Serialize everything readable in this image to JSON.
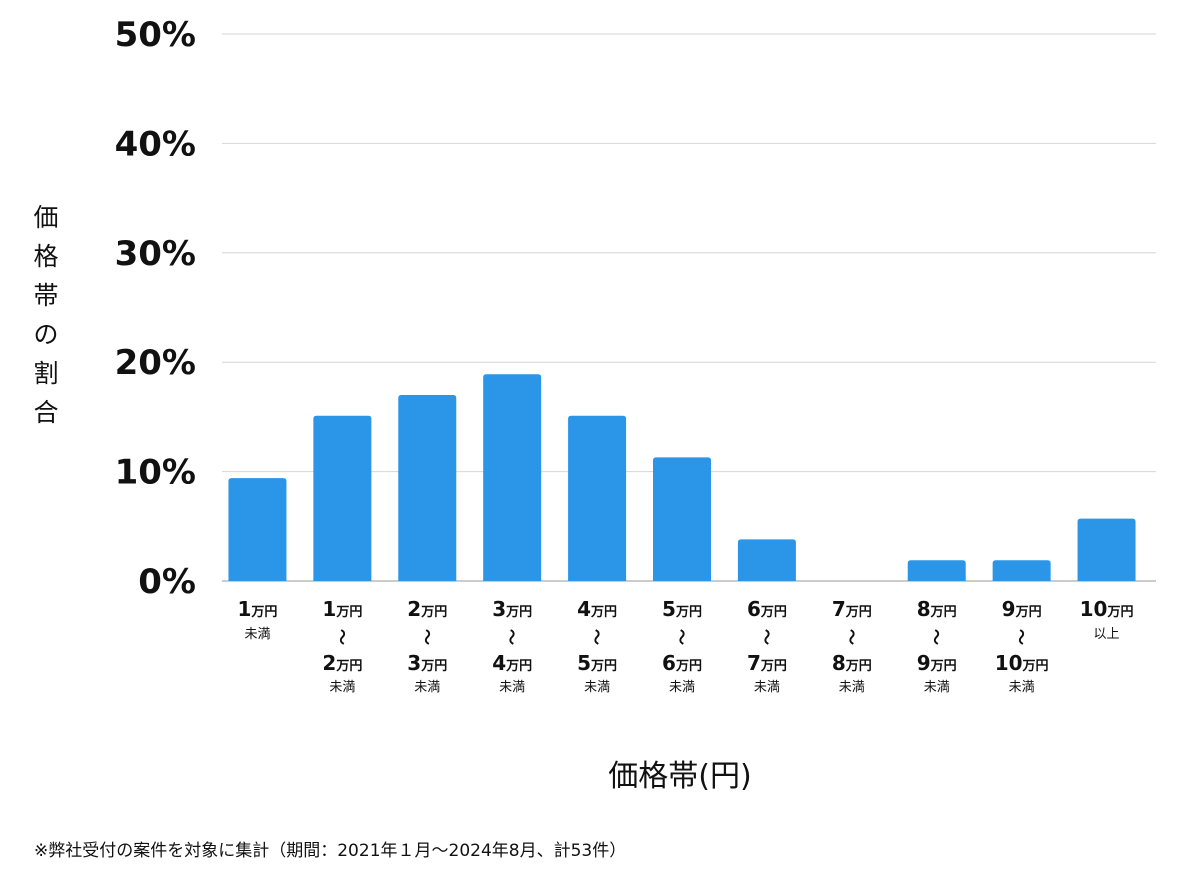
{
  "chart_data": {
    "type": "bar",
    "xlabel": "価格帯(円)",
    "ylabel": "価格帯の割合",
    "ylim": [
      0,
      50
    ],
    "yticks": [
      "0%",
      "10%",
      "20%",
      "30%",
      "40%",
      "50%"
    ],
    "grid": true,
    "bar_color": "#2b95e8",
    "categories": [
      {
        "lines": [
          {
            "num": "1",
            "unit": "万円"
          }
        ],
        "suffix": "未満"
      },
      {
        "lines": [
          {
            "num": "1",
            "unit": "万円"
          },
          {
            "num": "2",
            "unit": "万円"
          }
        ],
        "suffix": "未満"
      },
      {
        "lines": [
          {
            "num": "2",
            "unit": "万円"
          },
          {
            "num": "3",
            "unit": "万円"
          }
        ],
        "suffix": "未満"
      },
      {
        "lines": [
          {
            "num": "3",
            "unit": "万円"
          },
          {
            "num": "4",
            "unit": "万円"
          }
        ],
        "suffix": "未満"
      },
      {
        "lines": [
          {
            "num": "4",
            "unit": "万円"
          },
          {
            "num": "5",
            "unit": "万円"
          }
        ],
        "suffix": "未満"
      },
      {
        "lines": [
          {
            "num": "5",
            "unit": "万円"
          },
          {
            "num": "6",
            "unit": "万円"
          }
        ],
        "suffix": "未満"
      },
      {
        "lines": [
          {
            "num": "6",
            "unit": "万円"
          },
          {
            "num": "7",
            "unit": "万円"
          }
        ],
        "suffix": "未満"
      },
      {
        "lines": [
          {
            "num": "7",
            "unit": "万円"
          },
          {
            "num": "8",
            "unit": "万円"
          }
        ],
        "suffix": "未満"
      },
      {
        "lines": [
          {
            "num": "8",
            "unit": "万円"
          },
          {
            "num": "9",
            "unit": "万円"
          }
        ],
        "suffix": "未満"
      },
      {
        "lines": [
          {
            "num": "9",
            "unit": "万円"
          },
          {
            "num": "10",
            "unit": "万円"
          }
        ],
        "suffix": "未満"
      },
      {
        "lines": [
          {
            "num": "10",
            "unit": "万円"
          }
        ],
        "suffix": "以上"
      }
    ],
    "range_symbol": "〜",
    "values": [
      9.4,
      15.1,
      17.0,
      18.9,
      15.1,
      11.3,
      3.8,
      0.0,
      1.9,
      1.9,
      5.7
    ]
  },
  "footnote": "※弊社受付の案件を対象に集計（期間：2021年１月〜2024年8月、計53件）"
}
